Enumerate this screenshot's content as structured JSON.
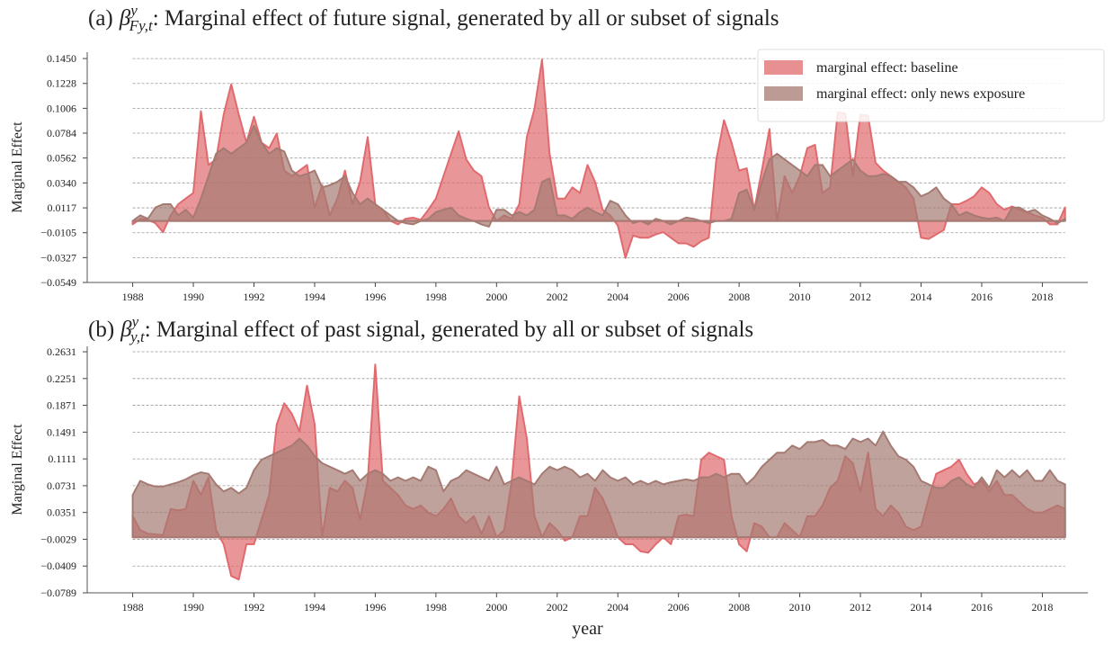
{
  "chart_data": [
    {
      "type": "area",
      "title": {
        "label": "(a)",
        "symbol": "β",
        "sup": "y",
        "sub": "Fy,t",
        "text": ": Marginal effect of future signal, generated by all or subset of signals"
      },
      "ylabel": "Marginal Effect",
      "legend": "upper right",
      "grid": true,
      "xlim": [
        1986.5,
        2019.5
      ],
      "xticks": [
        1988,
        1990,
        1992,
        1994,
        1996,
        1998,
        2000,
        2002,
        2004,
        2006,
        2008,
        2010,
        2012,
        2014,
        2016,
        2018
      ],
      "ylim": [
        -0.0549,
        0.1507
      ],
      "yticks": [
        {
          "value": -0.0549,
          "label": "−0.0549"
        },
        {
          "value": -0.0327,
          "label": "−0.0327"
        },
        {
          "value": -0.0105,
          "label": "−0.0105"
        },
        0.0117,
        {
          "value": 0.034,
          "label": "0.0340"
        },
        0.0562,
        0.0784,
        0.1006,
        0.1228,
        {
          "value": 0.145,
          "label": "0.1450"
        }
      ],
      "x": [
        1988,
        1988.25,
        1988.5,
        1988.75,
        1989,
        1989.25,
        1989.5,
        1989.75,
        1990,
        1990.25,
        1990.5,
        1990.75,
        1991,
        1991.25,
        1991.5,
        1991.75,
        1992,
        1992.25,
        1992.5,
        1992.75,
        1993,
        1993.25,
        1993.5,
        1993.75,
        1994,
        1994.25,
        1994.5,
        1994.75,
        1995,
        1995.25,
        1995.5,
        1995.75,
        1996,
        1996.25,
        1996.5,
        1996.75,
        1997,
        1997.25,
        1997.5,
        1997.75,
        1998,
        1998.25,
        1998.5,
        1998.75,
        1999,
        1999.25,
        1999.5,
        1999.75,
        2000,
        2000.25,
        2000.5,
        2000.75,
        2001,
        2001.25,
        2001.5,
        2001.75,
        2002,
        2002.25,
        2002.5,
        2002.75,
        2003,
        2003.25,
        2003.5,
        2003.75,
        2004,
        2004.25,
        2004.5,
        2004.75,
        2005,
        2005.25,
        2005.5,
        2005.75,
        2006,
        2006.25,
        2006.5,
        2006.75,
        2007,
        2007.25,
        2007.5,
        2007.75,
        2008,
        2008.25,
        2008.5,
        2008.75,
        2009,
        2009.25,
        2009.5,
        2009.75,
        2010,
        2010.25,
        2010.5,
        2010.75,
        2011,
        2011.25,
        2011.5,
        2011.75,
        2012,
        2012.25,
        2012.5,
        2012.75,
        2013,
        2013.25,
        2013.5,
        2013.75,
        2014,
        2014.25,
        2014.5,
        2014.75,
        2015,
        2015.25,
        2015.5,
        2015.75,
        2016,
        2016.25,
        2016.5,
        2016.75,
        2017,
        2017.25,
        2017.5,
        2017.75,
        2018,
        2018.25,
        2018.5,
        2018.75
      ],
      "series": [
        {
          "name": "marginal effect: baseline",
          "color": "#e06a6e",
          "values": [
            -0.003,
            0.002,
            0.001,
            -0.002,
            -0.01,
            0.005,
            0.015,
            0.02,
            0.025,
            0.098,
            0.05,
            0.055,
            0.095,
            0.122,
            0.095,
            0.07,
            0.093,
            0.07,
            0.065,
            0.078,
            0.045,
            0.04,
            0.045,
            0.05,
            0.012,
            0.032,
            0.005,
            0.02,
            0.045,
            0.015,
            0.035,
            0.075,
            0.015,
            0.01,
            0.0,
            -0.003,
            0.002,
            0.003,
            0.001,
            0.01,
            0.02,
            0.04,
            0.06,
            0.08,
            0.055,
            0.045,
            0.04,
            0.012,
            0.0,
            0.005,
            0.002,
            0.015,
            0.075,
            0.1,
            0.144,
            0.06,
            0.02,
            0.02,
            0.03,
            0.025,
            0.05,
            0.035,
            0.01,
            0.005,
            -0.004,
            -0.033,
            -0.013,
            -0.015,
            -0.015,
            -0.012,
            -0.01,
            -0.015,
            -0.02,
            -0.02,
            -0.023,
            -0.018,
            -0.015,
            0.055,
            0.09,
            0.07,
            0.045,
            0.047,
            0.01,
            0.045,
            0.082,
            0.0,
            0.04,
            0.025,
            0.04,
            0.065,
            0.068,
            0.025,
            0.03,
            0.097,
            0.096,
            0.04,
            0.095,
            0.094,
            0.052,
            0.045,
            0.04,
            0.035,
            0.03,
            0.02,
            -0.015,
            -0.016,
            -0.012,
            -0.008,
            0.015,
            0.015,
            0.018,
            0.022,
            0.03,
            0.025,
            0.015,
            0.01,
            0.013,
            0.01,
            0.008,
            0.005,
            0.003,
            -0.003,
            -0.003,
            0.012
          ]
        },
        {
          "name": "marginal effect: only news exposure",
          "color": "#a57a72",
          "values": [
            0.0,
            0.005,
            0.002,
            0.012,
            0.015,
            0.015,
            0.005,
            0.01,
            0.003,
            0.02,
            0.04,
            0.06,
            0.065,
            0.06,
            0.065,
            0.07,
            0.085,
            0.07,
            0.06,
            0.065,
            0.062,
            0.045,
            0.04,
            0.042,
            0.045,
            0.03,
            0.032,
            0.035,
            0.04,
            0.025,
            0.015,
            0.02,
            0.015,
            0.01,
            0.005,
            0.0,
            -0.002,
            -0.003,
            0.0,
            0.002,
            0.008,
            0.01,
            0.012,
            0.005,
            0.002,
            0.0,
            -0.003,
            -0.005,
            0.01,
            0.01,
            0.005,
            0.008,
            0.005,
            0.01,
            0.035,
            0.038,
            0.005,
            0.005,
            0.002,
            0.008,
            0.012,
            0.008,
            0.005,
            0.018,
            0.015,
            0.005,
            -0.002,
            0.0,
            -0.003,
            0.002,
            0.0,
            -0.003,
            0.0,
            0.003,
            0.002,
            0.0,
            -0.002,
            0.0,
            0.0,
            0.002,
            0.025,
            0.028,
            0.01,
            0.035,
            0.055,
            0.06,
            0.055,
            0.05,
            0.045,
            0.04,
            0.05,
            0.05,
            0.04,
            0.045,
            0.05,
            0.055,
            0.045,
            0.04,
            0.04,
            0.042,
            0.04,
            0.035,
            0.035,
            0.03,
            0.022,
            0.025,
            0.03,
            0.02,
            0.015,
            0.005,
            0.008,
            0.005,
            0.003,
            0.002,
            0.003,
            0.0,
            0.012,
            0.012,
            0.008,
            0.01,
            0.005,
            0.002,
            -0.002,
            0.002
          ]
        }
      ]
    },
    {
      "type": "area",
      "title": {
        "label": "(b)",
        "symbol": "β",
        "sup": "y",
        "sub": "y,t",
        "text": ": Marginal effect of past signal, generated by all or subset of signals"
      },
      "ylabel": "Marginal Effect",
      "xlabel": "year",
      "grid": true,
      "xlim": [
        1986.5,
        2019.5
      ],
      "xticks": [
        1988,
        1990,
        1992,
        1994,
        1996,
        1998,
        2000,
        2002,
        2004,
        2006,
        2008,
        2010,
        2012,
        2014,
        2016,
        2018
      ],
      "ylim": [
        -0.0789,
        0.2708
      ],
      "yticks": [
        {
          "value": -0.0789,
          "label": "−0.0789"
        },
        {
          "value": -0.0409,
          "label": "−0.0409"
        },
        {
          "value": -0.0029,
          "label": "−0.0029"
        },
        0.0351,
        0.0731,
        0.1111,
        0.1491,
        0.1871,
        0.2251,
        0.2631
      ],
      "x": [
        1988,
        1988.25,
        1988.5,
        1988.75,
        1989,
        1989.25,
        1989.5,
        1989.75,
        1990,
        1990.25,
        1990.5,
        1990.75,
        1991,
        1991.25,
        1991.5,
        1991.75,
        1992,
        1992.25,
        1992.5,
        1992.75,
        1993,
        1993.25,
        1993.5,
        1993.75,
        1994,
        1994.25,
        1994.5,
        1994.75,
        1995,
        1995.25,
        1995.5,
        1995.75,
        1996,
        1996.25,
        1996.5,
        1996.75,
        1997,
        1997.25,
        1997.5,
        1997.75,
        1998,
        1998.25,
        1998.5,
        1998.75,
        1999,
        1999.25,
        1999.5,
        1999.75,
        2000,
        2000.25,
        2000.5,
        2000.75,
        2001,
        2001.25,
        2001.5,
        2001.75,
        2002,
        2002.25,
        2002.5,
        2002.75,
        2003,
        2003.25,
        2003.5,
        2003.75,
        2004,
        2004.25,
        2004.5,
        2004.75,
        2005,
        2005.25,
        2005.5,
        2005.75,
        2006,
        2006.25,
        2006.5,
        2006.75,
        2007,
        2007.25,
        2007.5,
        2007.75,
        2008,
        2008.25,
        2008.5,
        2008.75,
        2009,
        2009.25,
        2009.5,
        2009.75,
        2010,
        2010.25,
        2010.5,
        2010.75,
        2011,
        2011.25,
        2011.5,
        2011.75,
        2012,
        2012.25,
        2012.5,
        2012.75,
        2013,
        2013.25,
        2013.5,
        2013.75,
        2014,
        2014.25,
        2014.5,
        2014.75,
        2015,
        2015.25,
        2015.5,
        2015.75,
        2016,
        2016.25,
        2016.5,
        2016.75,
        2017,
        2017.25,
        2017.5,
        2017.75,
        2018,
        2018.25,
        2018.5,
        2018.75
      ],
      "series": [
        {
          "color": "#e06a6e",
          "values": [
            0.03,
            0.01,
            0.005,
            0.004,
            0.003,
            0.04,
            0.038,
            0.04,
            0.08,
            0.06,
            0.085,
            0.01,
            -0.01,
            -0.055,
            -0.06,
            -0.01,
            -0.01,
            0.025,
            0.06,
            0.16,
            0.19,
            0.175,
            0.15,
            0.215,
            0.16,
            0.0,
            0.07,
            0.065,
            0.08,
            0.07,
            0.025,
            0.08,
            0.245,
            0.08,
            0.07,
            0.06,
            0.045,
            0.04,
            0.045,
            0.035,
            0.03,
            0.04,
            0.055,
            0.03,
            0.02,
            0.03,
            0.005,
            0.03,
            0.0,
            0.01,
            0.08,
            0.2,
            0.14,
            0.03,
            0.0,
            0.02,
            0.01,
            -0.005,
            0.0,
            0.03,
            0.03,
            0.07,
            0.055,
            0.03,
            0.0,
            -0.01,
            -0.01,
            -0.02,
            -0.022,
            -0.01,
            0.0,
            -0.01,
            0.03,
            0.032,
            0.03,
            0.11,
            0.12,
            0.115,
            0.11,
            0.03,
            -0.01,
            -0.02,
            0.02,
            0.015,
            0.0,
            0.0,
            0.02,
            0.01,
            0.0,
            0.03,
            0.03,
            0.045,
            0.07,
            0.08,
            0.115,
            0.105,
            0.065,
            0.12,
            0.04,
            0.03,
            0.045,
            0.035,
            0.015,
            0.01,
            0.015,
            0.055,
            0.09,
            0.095,
            0.1,
            0.11,
            0.09,
            0.075,
            0.08,
            0.065,
            0.08,
            0.06,
            0.06,
            0.05,
            0.04,
            0.035,
            0.035,
            0.04,
            0.045,
            0.04
          ]
        },
        {
          "color": "#a57a72",
          "values": [
            0.06,
            0.08,
            0.075,
            0.072,
            0.072,
            0.075,
            0.078,
            0.082,
            0.088,
            0.092,
            0.09,
            0.075,
            0.065,
            0.07,
            0.062,
            0.07,
            0.095,
            0.11,
            0.115,
            0.12,
            0.125,
            0.13,
            0.14,
            0.13,
            0.115,
            0.105,
            0.1,
            0.095,
            0.09,
            0.095,
            0.08,
            0.09,
            0.095,
            0.09,
            0.08,
            0.085,
            0.08,
            0.085,
            0.08,
            0.1,
            0.095,
            0.065,
            0.08,
            0.085,
            0.095,
            0.09,
            0.085,
            0.08,
            0.1,
            0.075,
            0.08,
            0.085,
            0.08,
            0.075,
            0.09,
            0.1,
            0.095,
            0.1,
            0.095,
            0.085,
            0.09,
            0.08,
            0.095,
            0.085,
            0.08,
            0.085,
            0.075,
            0.08,
            0.075,
            0.08,
            0.075,
            0.078,
            0.08,
            0.082,
            0.08,
            0.085,
            0.085,
            0.09,
            0.085,
            0.09,
            0.09,
            0.075,
            0.085,
            0.1,
            0.11,
            0.12,
            0.12,
            0.13,
            0.125,
            0.135,
            0.135,
            0.138,
            0.13,
            0.13,
            0.125,
            0.14,
            0.135,
            0.14,
            0.13,
            0.15,
            0.13,
            0.115,
            0.11,
            0.1,
            0.08,
            0.075,
            0.07,
            0.07,
            0.08,
            0.085,
            0.075,
            0.07,
            0.085,
            0.07,
            0.095,
            0.085,
            0.095,
            0.085,
            0.095,
            0.08,
            0.08,
            0.095,
            0.08,
            0.075
          ]
        }
      ]
    }
  ]
}
